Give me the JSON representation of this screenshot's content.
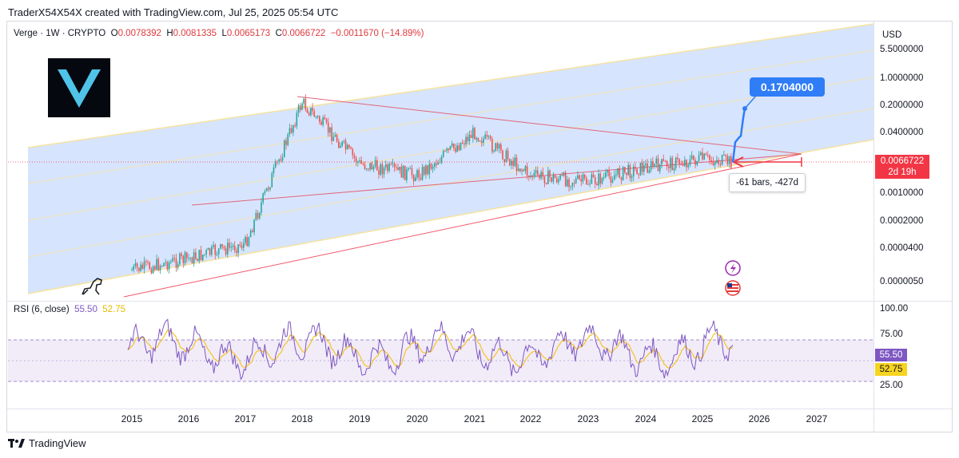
{
  "header": {
    "attribution": "TraderX54X54X created with TradingView.com, Jul 25, 2025 05:54 UTC"
  },
  "legend": {
    "symbol": "Verge · 1W · CRYPTO",
    "open_label": "O",
    "open": "0.0078392",
    "high_label": "H",
    "high": "0.0081335",
    "low_label": "L",
    "low": "0.0065173",
    "close_label": "C",
    "close": "0.0066722",
    "change": "−0.0011670 (−14.89%)"
  },
  "currency": "USD",
  "price_axis_ticks": [
    "5.5000000",
    "1.0000000",
    "0.2000000",
    "0.0400000",
    "0.0010000",
    "0.0002000",
    "0.0000400",
    "0.0000050"
  ],
  "current_price": {
    "value": "0.0066722",
    "countdown": "2d 19h"
  },
  "annotations": {
    "target_label": "0.1704000",
    "measure_label": "-61 bars, -427d"
  },
  "rsi": {
    "label": "RSI (6, close)",
    "value": "55.50",
    "ma_value": "52.75",
    "ticks": [
      "100.00",
      "75.00",
      "25.00"
    ]
  },
  "time_axis": [
    "2015",
    "2016",
    "2017",
    "2018",
    "2019",
    "2020",
    "2021",
    "2022",
    "2023",
    "2024",
    "2025",
    "2026",
    "2027"
  ],
  "footer": {
    "brand": "TradingView"
  },
  "colors": {
    "channel_fill": "#c9dbfc",
    "channel_border": "#f5e3a0",
    "candle_up": "#26a69a",
    "candle_down": "#ef5350",
    "projection": "#2f7df7",
    "triangle_line": "#e0677a",
    "rsi_line": "#7e57c2",
    "rsi_ma": "#f7c325",
    "price_tag": "#f23645"
  },
  "chart_data": {
    "type": "candlestick",
    "title": "Verge · 1W · CRYPTO",
    "scale": "log",
    "y_unit": "USD",
    "x": [
      "2015",
      "2016",
      "2017",
      "2018",
      "2019",
      "2020",
      "2021",
      "2022",
      "2023",
      "2024",
      "2025",
      "2025-07"
    ],
    "series": [
      {
        "name": "Verge",
        "values": [
          1e-05,
          2e-05,
          5e-05,
          0.25,
          0.006,
          0.003,
          0.04,
          0.003,
          0.002,
          0.005,
          0.008,
          0.0066722
        ]
      }
    ],
    "projection_target": 0.1704,
    "rsi": {
      "label": "RSI (6, close)",
      "last": 55.5,
      "ma_last": 52.75,
      "upper_band": 70,
      "lower_band": 30
    }
  }
}
